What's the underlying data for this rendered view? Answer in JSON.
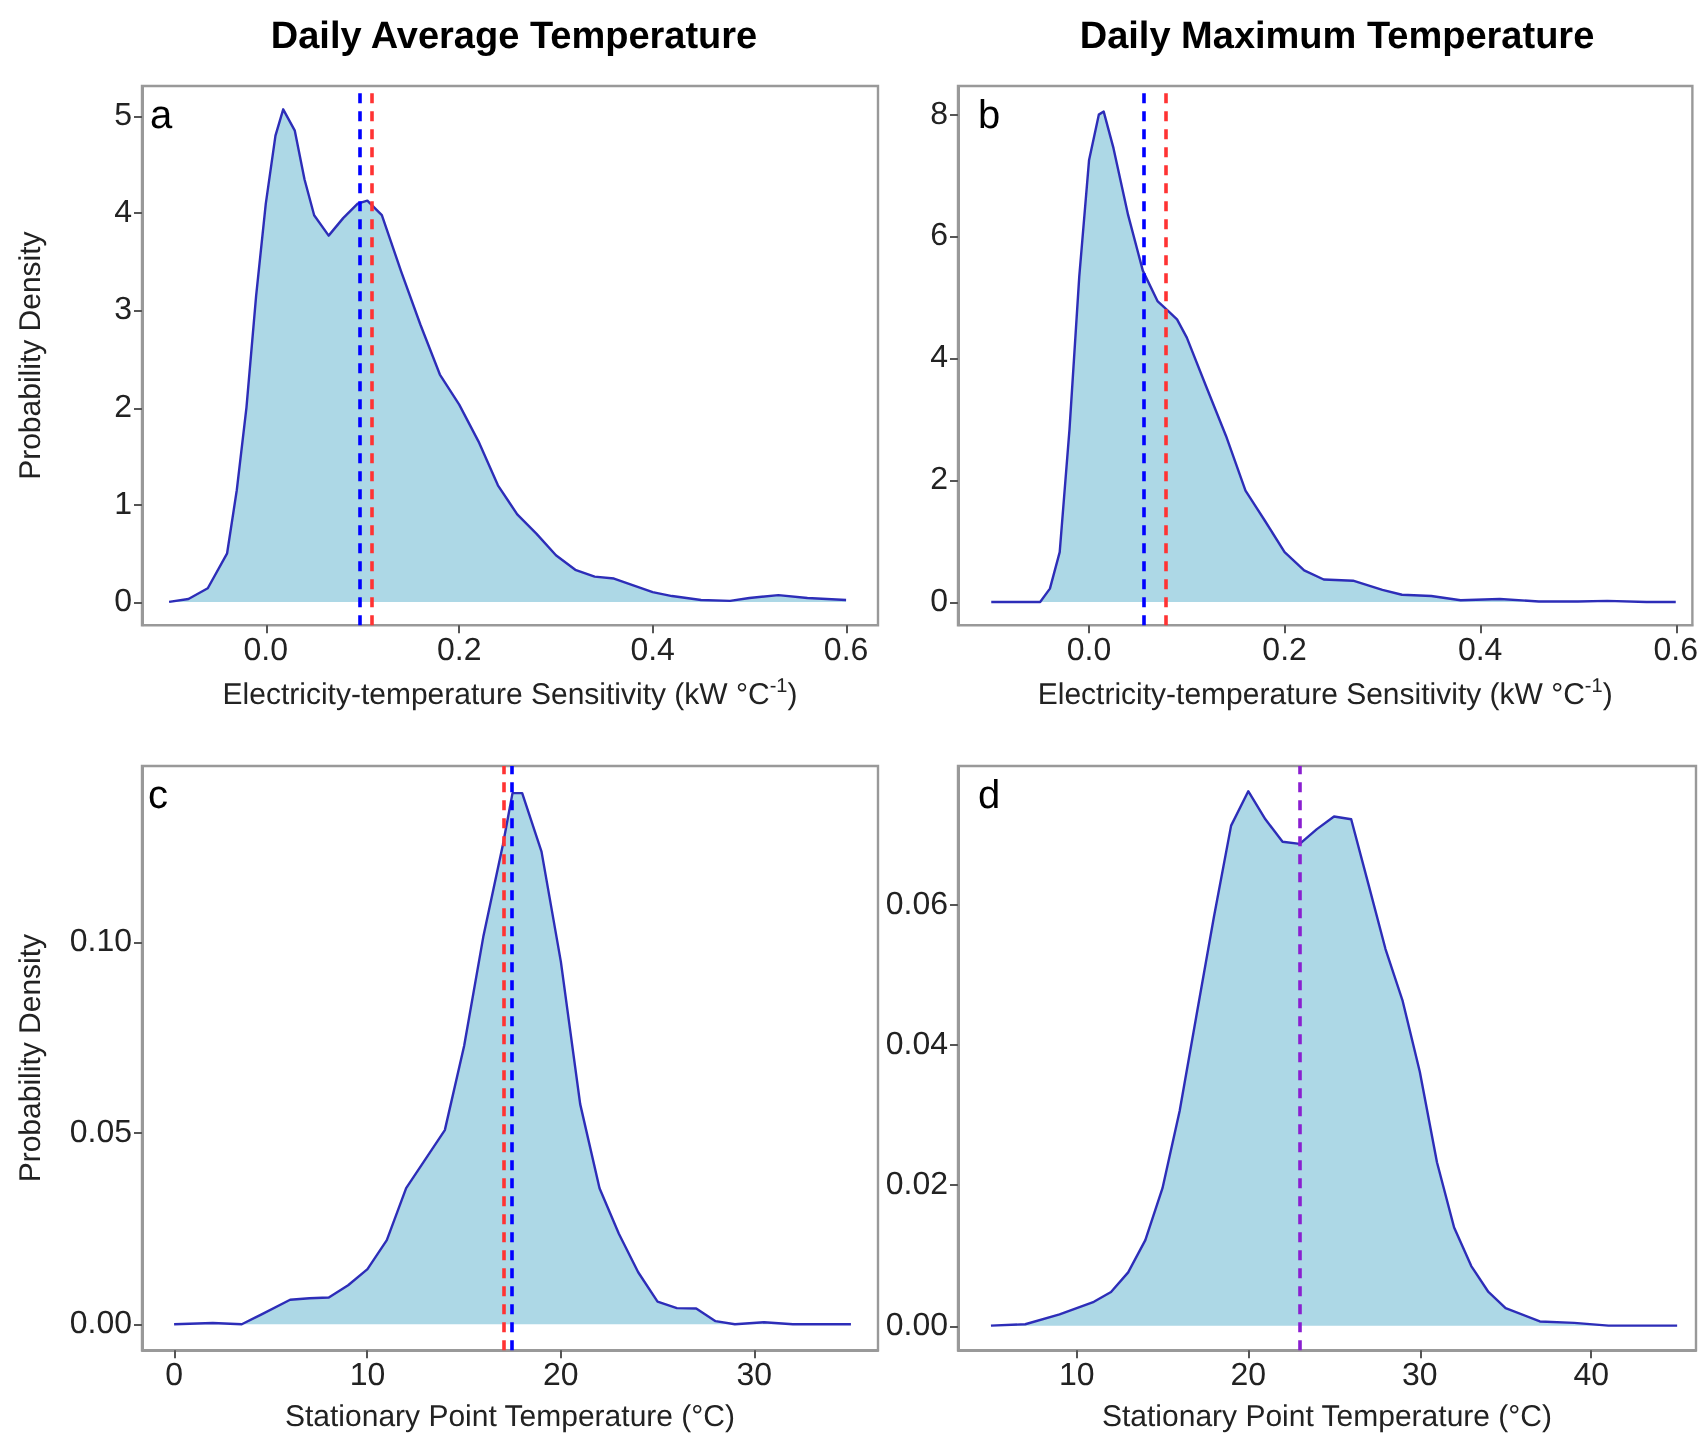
{
  "chart_data": [
    {
      "type": "area",
      "title": "Daily Average Temperature",
      "xlabel": "Electricity-temperature Sensitivity (kW °C$^{-1}$)",
      "ylabel": "Probability Density",
      "annotations": [
        "a"
      ],
      "series": [
        {
          "color": "#add8e6",
          "x": [
            -0.1,
            -0.08,
            -0.06,
            -0.04,
            -0.03,
            -0.02,
            -0.01,
            0.0,
            0.01,
            0.018,
            0.03,
            0.04,
            0.05,
            0.065,
            0.08,
            0.095,
            0.105,
            0.12,
            0.14,
            0.16,
            0.18,
            0.2,
            0.22,
            0.24,
            0.26,
            0.28,
            0.3,
            0.32,
            0.34,
            0.36,
            0.38,
            0.4,
            0.42,
            0.45,
            0.48,
            0.5,
            0.53,
            0.56,
            0.6
          ],
          "values": [
            0,
            0.03,
            0.14,
            0.5,
            1.15,
            2.0,
            3.15,
            4.1,
            4.8,
            5.07,
            4.85,
            4.35,
            3.98,
            3.77,
            3.95,
            4.1,
            4.13,
            3.98,
            3.4,
            2.85,
            2.34,
            2.03,
            1.65,
            1.2,
            0.9,
            0.7,
            0.48,
            0.33,
            0.26,
            0.24,
            0.17,
            0.1,
            0.06,
            0.02,
            0.01,
            0.04,
            0.07,
            0.04,
            0.02
          ]
        }
      ],
      "ref_lines": [
        {
          "axis": "x",
          "value": 0.097,
          "color": "#0000ff",
          "line_style": "dashed"
        },
        {
          "axis": "x",
          "value": 0.11,
          "color": "#ff3333",
          "line_style": "dashed"
        }
      ],
      "xlim": [
        -0.128,
        0.633
      ],
      "xticks": [
        {
          "value": 0,
          "label": "0.0"
        },
        {
          "value": 0.2,
          "label": "0.2"
        },
        {
          "value": 0.4,
          "label": "0.4"
        },
        {
          "value": 0.6,
          "label": "0.6"
        }
      ],
      "ylim": [
        -0.24,
        5.31
      ],
      "yticks": [
        0,
        1,
        2,
        3,
        4,
        5
      ],
      "grid": false
    },
    {
      "type": "area",
      "title": "Daily Maximum Temperature",
      "xlabel": "Electricity-temperature Sensitivity (kW °C$^{-1}$)",
      "annotations": [
        "b"
      ],
      "series": [
        {
          "color": "#add8e6",
          "x": [
            -0.1,
            -0.05,
            -0.04,
            -0.03,
            -0.02,
            -0.01,
            0.0,
            0.01,
            0.015,
            0.025,
            0.04,
            0.055,
            0.07,
            0.08,
            0.09,
            0.1,
            0.12,
            0.14,
            0.16,
            0.18,
            0.2,
            0.22,
            0.24,
            0.27,
            0.3,
            0.32,
            0.35,
            0.38,
            0.42,
            0.46,
            0.5,
            0.53,
            0.57,
            0.6
          ],
          "values": [
            0,
            0,
            0.22,
            0.82,
            2.83,
            5.34,
            7.25,
            8.0,
            8.05,
            7.45,
            6.35,
            5.44,
            4.94,
            4.79,
            4.64,
            4.34,
            3.53,
            2.73,
            1.83,
            1.33,
            0.82,
            0.52,
            0.37,
            0.35,
            0.2,
            0.12,
            0.1,
            0.03,
            0.05,
            0.01,
            0.01,
            0.02,
            0,
            0
          ]
        }
      ],
      "ref_lines": [
        {
          "axis": "x",
          "value": 0.055,
          "color": "#0000ff",
          "line_style": "dashed"
        },
        {
          "axis": "x",
          "value": 0.079,
          "color": "#ff3333",
          "line_style": "dashed"
        }
      ],
      "xlim": [
        -0.134,
        0.617
      ],
      "xticks": [
        {
          "value": 0,
          "label": "0.0"
        },
        {
          "value": 0.2,
          "label": "0.2"
        },
        {
          "value": 0.4,
          "label": "0.4"
        },
        {
          "value": 0.6,
          "label": "0.6"
        }
      ],
      "ylim": [
        -0.38,
        8.47
      ],
      "yticks": [
        0,
        2,
        4,
        6,
        8
      ],
      "grid": false
    },
    {
      "type": "area",
      "xlabel": "Stationary Point Temperature (°C)",
      "ylabel": "Probability Density",
      "annotations": [
        "c"
      ],
      "series": [
        {
          "color": "#add8e6",
          "x": [
            0,
            2,
            3.5,
            4.5,
            6,
            7,
            8,
            9,
            10,
            11,
            12,
            13,
            14,
            15,
            16,
            17,
            17.5,
            18,
            19,
            20,
            21,
            22,
            23,
            24,
            25,
            26,
            27,
            28,
            29,
            30.5,
            32,
            35
          ],
          "values": [
            0,
            0.0003,
            0,
            0.0025,
            0.0064,
            0.0068,
            0.007,
            0.0102,
            0.0144,
            0.022,
            0.0356,
            0.0432,
            0.0508,
            0.0729,
            0.1017,
            0.1254,
            0.139,
            0.139,
            0.1237,
            0.0949,
            0.0576,
            0.0356,
            0.0237,
            0.0136,
            0.0059,
            0.0042,
            0.0041,
            0.0008,
            0,
            0.0005,
            0,
            0
          ]
        }
      ],
      "ref_lines": [
        {
          "axis": "x",
          "value": 17.0,
          "color": "#ff3333",
          "line_style": "dashed"
        },
        {
          "axis": "x",
          "value": 17.4,
          "color": "#0000ff",
          "line_style": "dashed"
        }
      ],
      "xlim": [
        -1.66,
        36.4
      ],
      "xticks": [
        0,
        10,
        20,
        30
      ],
      "ylim": [
        -0.0068,
        0.1461
      ],
      "yticks": [
        {
          "value": 0,
          "label": "0.00"
        },
        {
          "value": 0.05,
          "label": "0.05"
        },
        {
          "value": 0.1,
          "label": "0.10"
        }
      ],
      "grid": false
    },
    {
      "type": "area",
      "xlabel": "Stationary Point Temperature (°C)",
      "annotations": [
        "d"
      ],
      "series": [
        {
          "color": "#add8e6",
          "x": [
            5,
            7,
            9,
            11,
            12,
            13,
            14,
            15,
            16,
            17,
            18,
            19,
            20,
            21,
            22,
            23,
            24,
            25,
            26,
            27,
            28,
            29,
            30,
            31,
            32,
            33,
            34,
            35,
            37,
            39,
            41,
            45
          ],
          "values": [
            0,
            0.0002,
            0.0016,
            0.0034,
            0.0048,
            0.0076,
            0.0122,
            0.0196,
            0.0306,
            0.0445,
            0.0583,
            0.0713,
            0.0762,
            0.0722,
            0.069,
            0.0687,
            0.0708,
            0.0726,
            0.0722,
            0.063,
            0.0537,
            0.0463,
            0.0362,
            0.0233,
            0.014,
            0.0085,
            0.0048,
            0.0025,
            0.0006,
            0.0004,
            0,
            0
          ]
        }
      ],
      "ref_lines": [
        {
          "axis": "x",
          "value": 23.0,
          "color": "#8a1fd0",
          "line_style": "dashed"
        }
      ],
      "xlim": [
        3.08,
        46.1
      ],
      "xticks": [
        10,
        20,
        30,
        40
      ],
      "ylim": [
        -0.0035,
        0.0798
      ],
      "yticks": [
        {
          "value": 0,
          "label": "0.00"
        },
        {
          "value": 0.02,
          "label": "0.02"
        },
        {
          "value": 0.04,
          "label": "0.04"
        },
        {
          "value": 0.06,
          "label": "0.06"
        }
      ],
      "grid": false
    }
  ]
}
